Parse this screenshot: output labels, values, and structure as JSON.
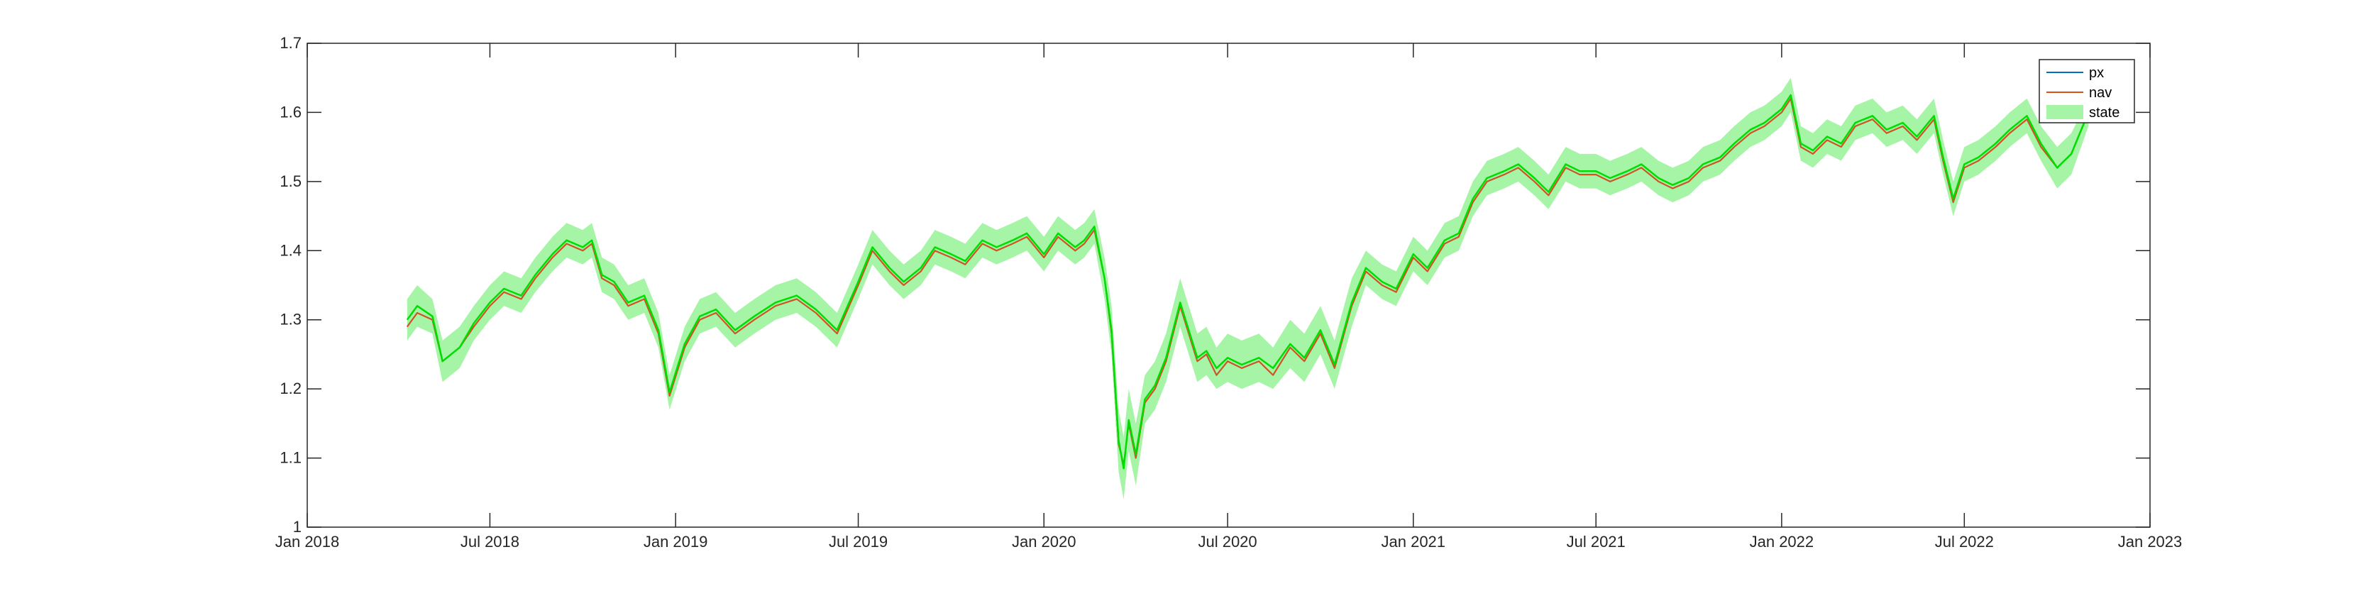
{
  "chart_data": {
    "type": "line",
    "title": "",
    "xlabel": "",
    "ylabel": "",
    "xlim": [
      "2018-01-01",
      "2023-01-01"
    ],
    "ylim": [
      1.0,
      1.7
    ],
    "x_ticks": [
      "2018-01-01",
      "2018-07-01",
      "2019-01-01",
      "2019-07-01",
      "2020-01-01",
      "2020-07-01",
      "2021-01-01",
      "2021-07-01",
      "2022-01-01",
      "2022-07-01",
      "2023-01-01"
    ],
    "x_tick_labels": [
      "Jan 2018",
      "Jul 2018",
      "Jan 2019",
      "Jul 2019",
      "Jan 2020",
      "Jul 2020",
      "Jan 2021",
      "Jul 2021",
      "Jan 2022",
      "Jul 2022",
      "Jan 2023"
    ],
    "y_ticks": [
      1.0,
      1.1,
      1.2,
      1.3,
      1.4,
      1.5,
      1.6,
      1.7
    ],
    "y_tick_labels": [
      "1",
      "1.1",
      "1.2",
      "1.3",
      "1.4",
      "1.5",
      "1.6",
      "1.7"
    ],
    "grid": false,
    "legend": {
      "placement": "top-right",
      "entries": [
        "px",
        "nav",
        "state"
      ]
    },
    "series": [
      {
        "name": "px",
        "color": "#0072BD",
        "x": [
          "2018-04-10",
          "2018-04-20",
          "2018-05-05",
          "2018-05-15",
          "2018-06-01",
          "2018-06-15",
          "2018-07-01",
          "2018-07-15",
          "2018-08-01",
          "2018-08-15",
          "2018-09-01",
          "2018-09-15",
          "2018-10-01",
          "2018-10-10",
          "2018-10-20",
          "2018-11-01",
          "2018-11-15",
          "2018-12-01",
          "2018-12-15",
          "2018-12-26",
          "2019-01-10",
          "2019-01-25",
          "2019-02-10",
          "2019-03-01",
          "2019-03-20",
          "2019-04-10",
          "2019-05-01",
          "2019-05-20",
          "2019-06-10",
          "2019-07-01",
          "2019-07-15",
          "2019-08-01",
          "2019-08-15",
          "2019-09-01",
          "2019-09-15",
          "2019-10-01",
          "2019-10-15",
          "2019-11-01",
          "2019-11-15",
          "2019-12-01",
          "2019-12-15",
          "2020-01-01",
          "2020-01-15",
          "2020-02-01",
          "2020-02-10",
          "2020-02-20",
          "2020-03-01",
          "2020-03-08",
          "2020-03-15",
          "2020-03-20",
          "2020-03-25",
          "2020-04-01",
          "2020-04-10",
          "2020-04-20",
          "2020-05-01",
          "2020-05-15",
          "2020-06-01",
          "2020-06-10",
          "2020-06-20",
          "2020-07-01",
          "2020-07-15",
          "2020-08-01",
          "2020-08-15",
          "2020-09-01",
          "2020-09-15",
          "2020-10-01",
          "2020-10-15",
          "2020-11-01",
          "2020-11-15",
          "2020-12-01",
          "2020-12-15",
          "2021-01-01",
          "2021-01-15",
          "2021-02-01",
          "2021-02-15",
          "2021-03-01",
          "2021-03-15",
          "2021-04-01",
          "2021-04-15",
          "2021-05-01",
          "2021-05-15",
          "2021-06-01",
          "2021-06-15",
          "2021-07-01",
          "2021-07-15",
          "2021-08-01",
          "2021-08-15",
          "2021-09-01",
          "2021-09-15",
          "2021-10-01",
          "2021-10-15",
          "2021-11-01",
          "2021-11-15",
          "2021-12-01",
          "2021-12-15",
          "2022-01-01",
          "2022-01-10",
          "2022-01-20",
          "2022-02-01",
          "2022-02-15",
          "2022-03-01",
          "2022-03-15",
          "2022-04-01",
          "2022-04-15",
          "2022-05-01",
          "2022-05-15",
          "2022-06-01",
          "2022-06-10",
          "2022-06-20",
          "2022-07-01",
          "2022-07-15",
          "2022-08-01",
          "2022-08-15",
          "2022-09-01",
          "2022-09-15",
          "2022-10-01",
          "2022-10-15",
          "2022-11-01"
        ],
        "y": [
          1.29,
          1.31,
          1.3,
          1.24,
          1.26,
          1.29,
          1.32,
          1.34,
          1.33,
          1.36,
          1.39,
          1.41,
          1.4,
          1.41,
          1.36,
          1.35,
          1.32,
          1.33,
          1.28,
          1.19,
          1.26,
          1.3,
          1.31,
          1.28,
          1.3,
          1.32,
          1.33,
          1.31,
          1.28,
          1.35,
          1.4,
          1.37,
          1.35,
          1.37,
          1.4,
          1.39,
          1.38,
          1.41,
          1.4,
          1.41,
          1.42,
          1.39,
          1.42,
          1.4,
          1.41,
          1.43,
          1.36,
          1.28,
          1.12,
          1.09,
          1.15,
          1.1,
          1.18,
          1.2,
          1.24,
          1.32,
          1.24,
          1.25,
          1.22,
          1.24,
          1.23,
          1.24,
          1.22,
          1.26,
          1.24,
          1.28,
          1.23,
          1.32,
          1.37,
          1.35,
          1.34,
          1.39,
          1.37,
          1.41,
          1.42,
          1.47,
          1.5,
          1.51,
          1.52,
          1.5,
          1.48,
          1.52,
          1.51,
          1.51,
          1.5,
          1.51,
          1.52,
          1.5,
          1.49,
          1.5,
          1.52,
          1.53,
          1.55,
          1.57,
          1.58,
          1.6,
          1.62,
          1.55,
          1.54,
          1.56,
          1.55,
          1.58,
          1.59,
          1.57,
          1.58,
          1.56,
          1.59,
          1.53,
          1.47,
          1.52,
          1.53,
          1.55,
          1.57,
          1.59,
          1.55,
          1.52,
          1.54,
          1.6
        ]
      },
      {
        "name": "nav",
        "color": "#D95319",
        "x": [
          "2018-04-10",
          "2018-04-20",
          "2018-05-05",
          "2018-05-15",
          "2018-06-01",
          "2018-06-15",
          "2018-07-01",
          "2018-07-15",
          "2018-08-01",
          "2018-08-15",
          "2018-09-01",
          "2018-09-15",
          "2018-10-01",
          "2018-10-10",
          "2018-10-20",
          "2018-11-01",
          "2018-11-15",
          "2018-12-01",
          "2018-12-15",
          "2018-12-26",
          "2019-01-10",
          "2019-01-25",
          "2019-02-10",
          "2019-03-01",
          "2019-03-20",
          "2019-04-10",
          "2019-05-01",
          "2019-05-20",
          "2019-06-10",
          "2019-07-01",
          "2019-07-15",
          "2019-08-01",
          "2019-08-15",
          "2019-09-01",
          "2019-09-15",
          "2019-10-01",
          "2019-10-15",
          "2019-11-01",
          "2019-11-15",
          "2019-12-01",
          "2019-12-15",
          "2020-01-01",
          "2020-01-15",
          "2020-02-01",
          "2020-02-10",
          "2020-02-20",
          "2020-03-01",
          "2020-03-08",
          "2020-03-15",
          "2020-03-20",
          "2020-03-25",
          "2020-04-01",
          "2020-04-10",
          "2020-04-20",
          "2020-05-01",
          "2020-05-15",
          "2020-06-01",
          "2020-06-10",
          "2020-06-20",
          "2020-07-01",
          "2020-07-15",
          "2020-08-01",
          "2020-08-15",
          "2020-09-01",
          "2020-09-15",
          "2020-10-01",
          "2020-10-15",
          "2020-11-01",
          "2020-11-15",
          "2020-12-01",
          "2020-12-15",
          "2021-01-01",
          "2021-01-15",
          "2021-02-01",
          "2021-02-15",
          "2021-03-01",
          "2021-03-15",
          "2021-04-01",
          "2021-04-15",
          "2021-05-01",
          "2021-05-15",
          "2021-06-01",
          "2021-06-15",
          "2021-07-01",
          "2021-07-15",
          "2021-08-01",
          "2021-08-15",
          "2021-09-01",
          "2021-09-15",
          "2021-10-01",
          "2021-10-15",
          "2021-11-01",
          "2021-11-15",
          "2021-12-01",
          "2021-12-15",
          "2022-01-01",
          "2022-01-10",
          "2022-01-20",
          "2022-02-01",
          "2022-02-15",
          "2022-03-01",
          "2022-03-15",
          "2022-04-01",
          "2022-04-15",
          "2022-05-01",
          "2022-05-15",
          "2022-06-01",
          "2022-06-10",
          "2022-06-20",
          "2022-07-01",
          "2022-07-15",
          "2022-08-01",
          "2022-08-15",
          "2022-09-01",
          "2022-09-15",
          "2022-10-01",
          "2022-10-15",
          "2022-11-01"
        ],
        "y": [
          1.29,
          1.31,
          1.3,
          1.24,
          1.26,
          1.29,
          1.32,
          1.34,
          1.33,
          1.36,
          1.39,
          1.41,
          1.4,
          1.41,
          1.36,
          1.35,
          1.32,
          1.33,
          1.28,
          1.19,
          1.26,
          1.3,
          1.31,
          1.28,
          1.3,
          1.32,
          1.33,
          1.31,
          1.28,
          1.35,
          1.4,
          1.37,
          1.35,
          1.37,
          1.4,
          1.39,
          1.38,
          1.41,
          1.4,
          1.41,
          1.42,
          1.39,
          1.42,
          1.4,
          1.41,
          1.43,
          1.36,
          1.28,
          1.12,
          1.09,
          1.15,
          1.1,
          1.18,
          1.2,
          1.24,
          1.32,
          1.24,
          1.25,
          1.22,
          1.24,
          1.23,
          1.24,
          1.22,
          1.26,
          1.24,
          1.28,
          1.23,
          1.32,
          1.37,
          1.35,
          1.34,
          1.39,
          1.37,
          1.41,
          1.42,
          1.47,
          1.5,
          1.51,
          1.52,
          1.5,
          1.48,
          1.52,
          1.51,
          1.51,
          1.5,
          1.51,
          1.52,
          1.5,
          1.49,
          1.5,
          1.52,
          1.53,
          1.55,
          1.57,
          1.58,
          1.6,
          1.62,
          1.55,
          1.54,
          1.56,
          1.55,
          1.58,
          1.59,
          1.57,
          1.58,
          1.56,
          1.59,
          1.53,
          1.47,
          1.52,
          1.53,
          1.55,
          1.57,
          1.59,
          1.55,
          1.52,
          1.54,
          1.6
        ]
      }
    ],
    "band": {
      "name": "state",
      "fill_color": "#A6F5A6",
      "line_color": "#00DD00",
      "x": [
        "2018-04-10",
        "2018-04-20",
        "2018-05-05",
        "2018-05-15",
        "2018-06-01",
        "2018-06-15",
        "2018-07-01",
        "2018-07-15",
        "2018-08-01",
        "2018-08-15",
        "2018-09-01",
        "2018-09-15",
        "2018-10-01",
        "2018-10-10",
        "2018-10-20",
        "2018-11-01",
        "2018-11-15",
        "2018-12-01",
        "2018-12-15",
        "2018-12-26",
        "2019-01-10",
        "2019-01-25",
        "2019-02-10",
        "2019-03-01",
        "2019-03-20",
        "2019-04-10",
        "2019-05-01",
        "2019-05-20",
        "2019-06-10",
        "2019-07-01",
        "2019-07-15",
        "2019-08-01",
        "2019-08-15",
        "2019-09-01",
        "2019-09-15",
        "2019-10-01",
        "2019-10-15",
        "2019-11-01",
        "2019-11-15",
        "2019-12-01",
        "2019-12-15",
        "2020-01-01",
        "2020-01-15",
        "2020-02-01",
        "2020-02-10",
        "2020-02-20",
        "2020-03-01",
        "2020-03-08",
        "2020-03-15",
        "2020-03-20",
        "2020-03-25",
        "2020-04-01",
        "2020-04-10",
        "2020-04-20",
        "2020-05-01",
        "2020-05-15",
        "2020-06-01",
        "2020-06-10",
        "2020-06-20",
        "2020-07-01",
        "2020-07-15",
        "2020-08-01",
        "2020-08-15",
        "2020-09-01",
        "2020-09-15",
        "2020-10-01",
        "2020-10-15",
        "2020-11-01",
        "2020-11-15",
        "2020-12-01",
        "2020-12-15",
        "2021-01-01",
        "2021-01-15",
        "2021-02-01",
        "2021-02-15",
        "2021-03-01",
        "2021-03-15",
        "2021-04-01",
        "2021-04-15",
        "2021-05-01",
        "2021-05-15",
        "2021-06-01",
        "2021-06-15",
        "2021-07-01",
        "2021-07-15",
        "2021-08-01",
        "2021-08-15",
        "2021-09-01",
        "2021-09-15",
        "2021-10-01",
        "2021-10-15",
        "2021-11-01",
        "2021-11-15",
        "2021-12-01",
        "2021-12-15",
        "2022-01-01",
        "2022-01-10",
        "2022-01-20",
        "2022-02-01",
        "2022-02-15",
        "2022-03-01",
        "2022-03-15",
        "2022-04-01",
        "2022-04-15",
        "2022-05-01",
        "2022-05-15",
        "2022-06-01",
        "2022-06-10",
        "2022-06-20",
        "2022-07-01",
        "2022-07-15",
        "2022-08-01",
        "2022-08-15",
        "2022-09-01",
        "2022-09-15",
        "2022-10-01",
        "2022-10-15",
        "2022-11-01"
      ],
      "lower": [
        1.27,
        1.29,
        1.28,
        1.21,
        1.23,
        1.27,
        1.3,
        1.32,
        1.31,
        1.34,
        1.37,
        1.39,
        1.38,
        1.39,
        1.34,
        1.33,
        1.3,
        1.31,
        1.26,
        1.17,
        1.24,
        1.28,
        1.29,
        1.26,
        1.28,
        1.3,
        1.31,
        1.29,
        1.26,
        1.33,
        1.38,
        1.35,
        1.33,
        1.35,
        1.38,
        1.37,
        1.36,
        1.39,
        1.38,
        1.39,
        1.4,
        1.37,
        1.4,
        1.38,
        1.39,
        1.41,
        1.33,
        1.25,
        1.08,
        1.04,
        1.11,
        1.06,
        1.15,
        1.17,
        1.21,
        1.29,
        1.21,
        1.22,
        1.2,
        1.21,
        1.2,
        1.21,
        1.2,
        1.23,
        1.21,
        1.25,
        1.2,
        1.29,
        1.35,
        1.33,
        1.32,
        1.37,
        1.35,
        1.39,
        1.4,
        1.45,
        1.48,
        1.49,
        1.5,
        1.48,
        1.46,
        1.5,
        1.49,
        1.49,
        1.48,
        1.49,
        1.5,
        1.48,
        1.47,
        1.48,
        1.5,
        1.51,
        1.53,
        1.55,
        1.56,
        1.58,
        1.6,
        1.53,
        1.52,
        1.54,
        1.53,
        1.56,
        1.57,
        1.55,
        1.56,
        1.54,
        1.57,
        1.51,
        1.45,
        1.5,
        1.51,
        1.53,
        1.55,
        1.57,
        1.53,
        1.49,
        1.51,
        1.58
      ],
      "upper": [
        1.33,
        1.35,
        1.33,
        1.27,
        1.29,
        1.32,
        1.35,
        1.37,
        1.36,
        1.39,
        1.42,
        1.44,
        1.43,
        1.44,
        1.39,
        1.38,
        1.35,
        1.36,
        1.31,
        1.22,
        1.29,
        1.33,
        1.34,
        1.31,
        1.33,
        1.35,
        1.36,
        1.34,
        1.31,
        1.38,
        1.43,
        1.4,
        1.38,
        1.4,
        1.43,
        1.42,
        1.41,
        1.44,
        1.43,
        1.44,
        1.45,
        1.42,
        1.45,
        1.43,
        1.44,
        1.46,
        1.39,
        1.32,
        1.17,
        1.13,
        1.2,
        1.15,
        1.22,
        1.24,
        1.28,
        1.36,
        1.28,
        1.29,
        1.26,
        1.28,
        1.27,
        1.28,
        1.26,
        1.3,
        1.28,
        1.32,
        1.27,
        1.36,
        1.4,
        1.38,
        1.37,
        1.42,
        1.4,
        1.44,
        1.45,
        1.5,
        1.53,
        1.54,
        1.55,
        1.53,
        1.51,
        1.55,
        1.54,
        1.54,
        1.53,
        1.54,
        1.55,
        1.53,
        1.52,
        1.53,
        1.55,
        1.56,
        1.58,
        1.6,
        1.61,
        1.63,
        1.65,
        1.58,
        1.57,
        1.59,
        1.58,
        1.61,
        1.62,
        1.6,
        1.61,
        1.59,
        1.62,
        1.56,
        1.5,
        1.55,
        1.56,
        1.58,
        1.6,
        1.62,
        1.58,
        1.55,
        1.57,
        1.62
      ]
    }
  }
}
